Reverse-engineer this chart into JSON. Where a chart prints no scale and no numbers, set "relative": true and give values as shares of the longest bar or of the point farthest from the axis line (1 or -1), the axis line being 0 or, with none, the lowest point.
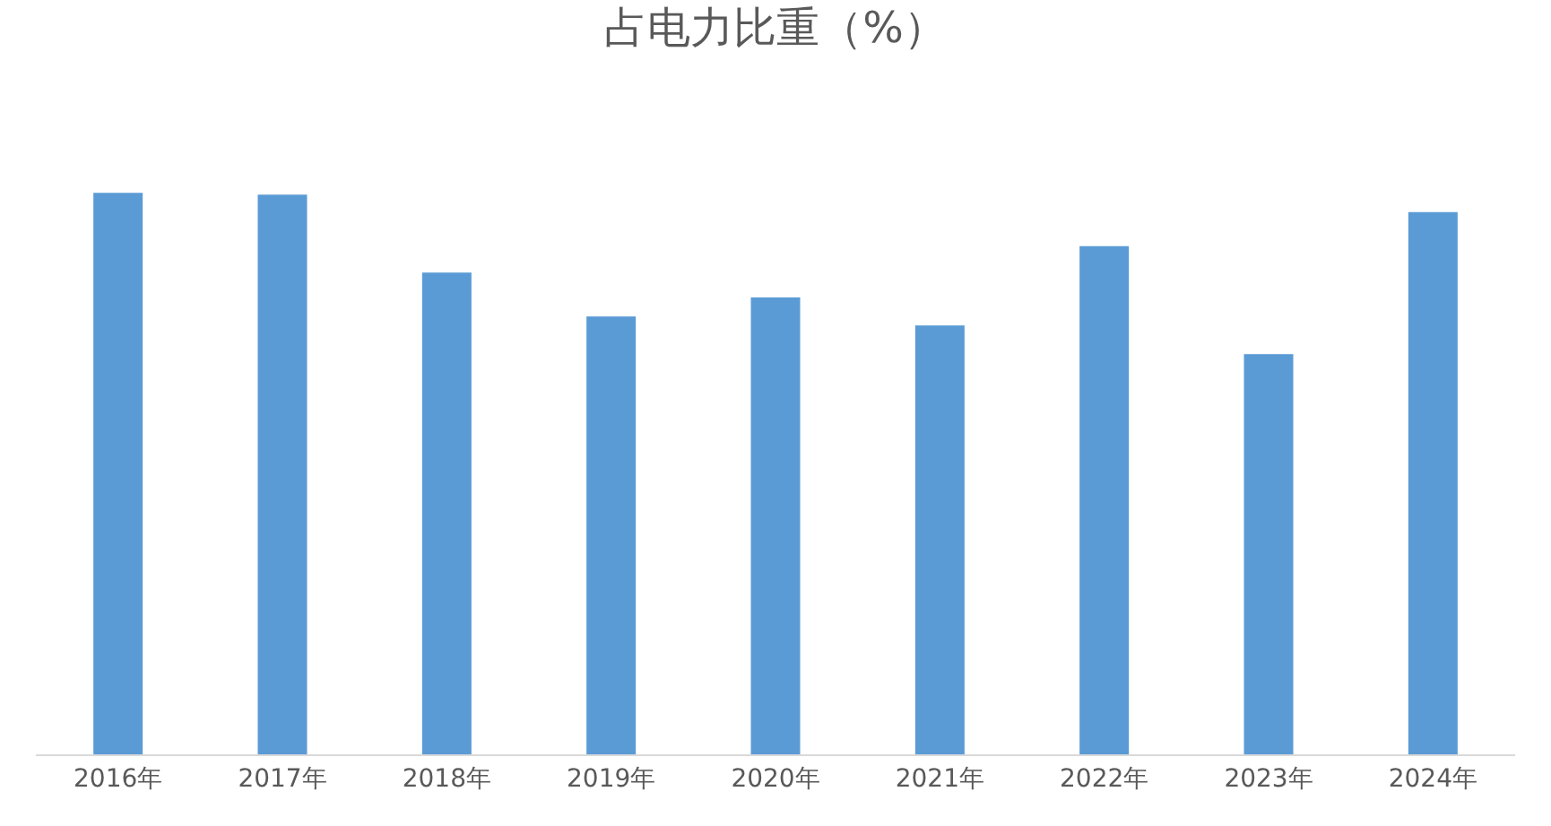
{
  "chart_data": {
    "type": "bar",
    "title": "占电力比重（%）",
    "relative": true,
    "legend": false,
    "categories": [
      "2016年",
      "2017年",
      "2018年",
      "2019年",
      "2020年",
      "2021年",
      "2022年",
      "2023年",
      "2024年"
    ],
    "values": [
      1,
      0.997,
      0.858,
      0.78,
      0.814,
      0.764,
      0.905,
      0.713,
      0.966
    ],
    "color": "#5b9bd5"
  }
}
